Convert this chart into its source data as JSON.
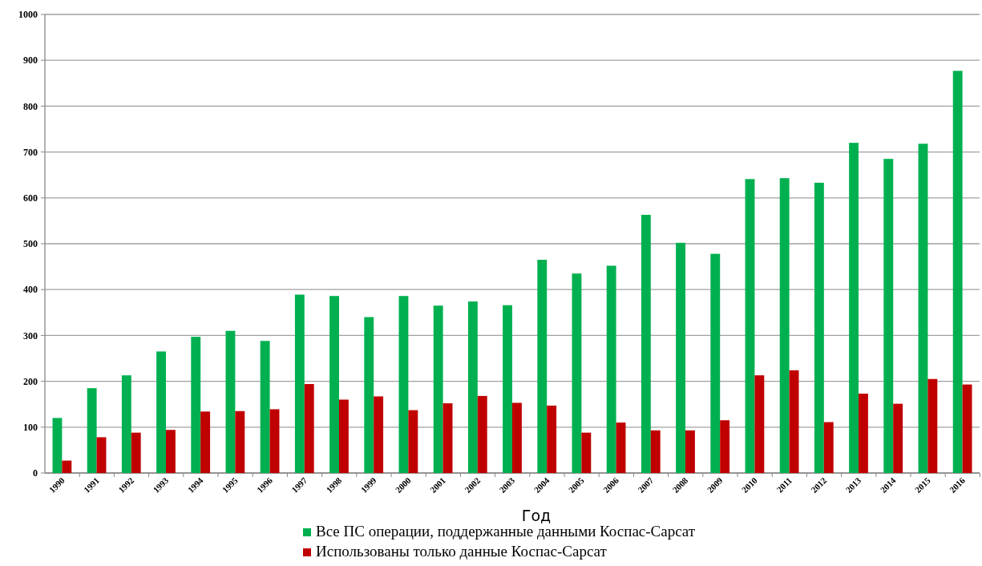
{
  "chart_data": {
    "type": "bar",
    "xlabel": "Год",
    "categories": [
      "1990",
      "1991",
      "1992",
      "1993",
      "1994",
      "1995",
      "1996",
      "1997",
      "1998",
      "1999",
      "2000",
      "2001",
      "2002",
      "2003",
      "2004",
      "2005",
      "2006",
      "2007",
      "2008",
      "2009",
      "2010",
      "2011",
      "2012",
      "2013",
      "2014",
      "2015",
      "2016"
    ],
    "series": [
      {
        "name": "Все ПС операции,  поддержанные данными  Коспас-Сарсат",
        "color": "#00b050",
        "values": [
          120,
          185,
          213,
          265,
          297,
          310,
          288,
          389,
          386,
          340,
          386,
          365,
          374,
          366,
          465,
          435,
          452,
          563,
          502,
          478,
          641,
          643,
          633,
          720,
          685,
          718,
          877
        ]
      },
      {
        "name": "Использованы только данные  Коспас-Сарсат",
        "color": "#c00000",
        "values": [
          27,
          78,
          88,
          94,
          134,
          135,
          139,
          194,
          160,
          167,
          137,
          152,
          168,
          153,
          147,
          88,
          110,
          93,
          93,
          115,
          213,
          224,
          111,
          173,
          151,
          205,
          193
        ]
      }
    ],
    "ylim": [
      0,
      1000
    ],
    "yticks": [
      0,
      100,
      200,
      300,
      400,
      500,
      600,
      700,
      800,
      900,
      1000
    ],
    "grid": "y",
    "legend": "bottom"
  }
}
